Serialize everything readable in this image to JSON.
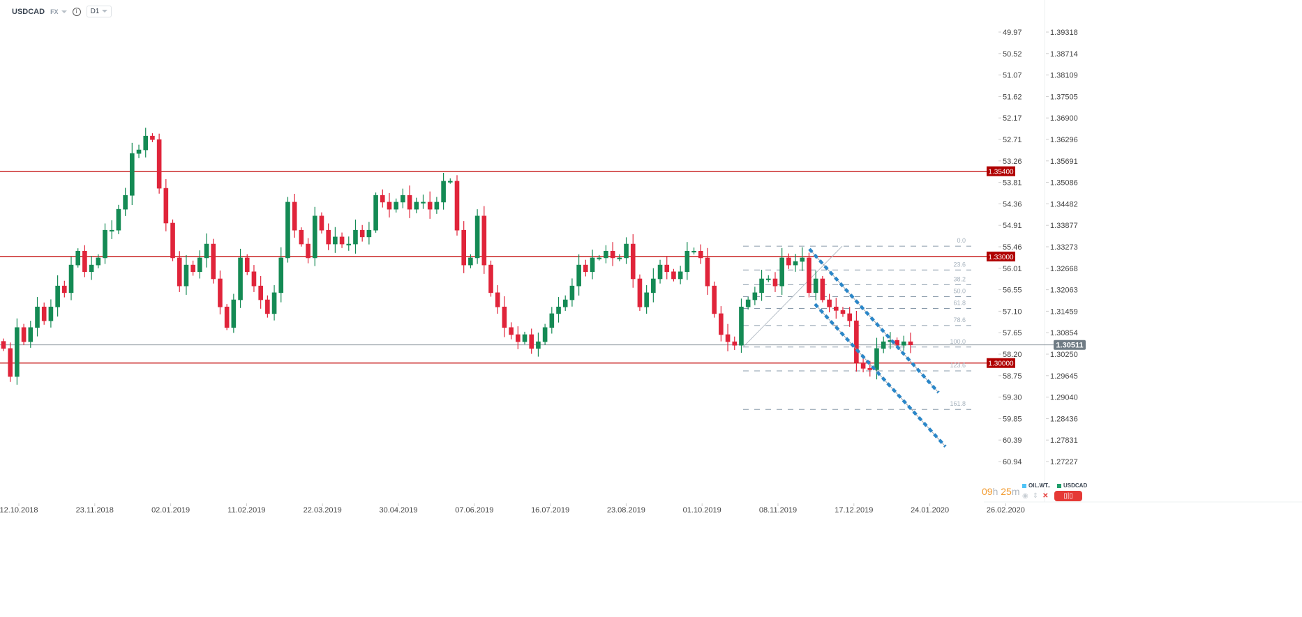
{
  "header": {
    "symbol": "USDCAD",
    "market": "FX",
    "timeframe": "D1"
  },
  "timer": {
    "hours": "09",
    "h_unit": "h",
    "minutes": "25",
    "m_unit": "m"
  },
  "legend": [
    {
      "label": "OIL.WT..",
      "color": "#4fc3f7"
    },
    {
      "label": "USDCAD",
      "color": "#1e9e6a"
    }
  ],
  "colors": {
    "up": "#148a54",
    "down": "#e0243a",
    "level": "#c00000",
    "fib": "#8a9bab",
    "channel": "#2a86c8",
    "current": "#7b868f"
  },
  "chart_data": {
    "type": "candlestick",
    "symbol": "USDCAD",
    "timeframe": "D1",
    "x_tick_labels": [
      "12.10.2018",
      "23.11.2018",
      "02.01.2019",
      "11.02.2019",
      "22.03.2019",
      "30.04.2019",
      "07.06.2019",
      "16.07.2019",
      "23.08.2019",
      "01.10.2019",
      "08.11.2019",
      "17.12.2019",
      "24.01.2020",
      "26.02.2020"
    ],
    "y_right_ticks": [
      "1.39318",
      "1.38714",
      "1.38109",
      "1.37505",
      "1.36900",
      "1.36296",
      "1.35691",
      "1.35086",
      "1.34482",
      "1.33877",
      "1.33273",
      "1.32668",
      "1.32063",
      "1.31459",
      "1.30854",
      "1.30250",
      "1.29645",
      "1.29040",
      "1.28436",
      "1.27831",
      "1.27227"
    ],
    "y_left_ticks": [
      "49.97",
      "50.52",
      "51.07",
      "51.62",
      "52.17",
      "52.71",
      "53.26",
      "53.81",
      "54.36",
      "54.91",
      "55.46",
      "56.01",
      "56.55",
      "57.10",
      "57.65",
      "58.20",
      "58.75",
      "59.30",
      "59.85",
      "60.39",
      "60.94"
    ],
    "ylim": [
      1.27227,
      1.39318
    ],
    "closes": [
      1.3041,
      1.2962,
      1.31,
      1.306,
      1.31,
      1.3158,
      1.3119,
      1.3158,
      1.3217,
      1.3198,
      1.3276,
      1.3315,
      1.3257,
      1.3276,
      1.3296,
      1.3374,
      1.3374,
      1.3433,
      1.3472,
      1.359,
      1.36,
      1.3639,
      1.3629,
      1.3492,
      1.3394,
      1.3296,
      1.3217,
      1.3276,
      1.3257,
      1.3296,
      1.3335,
      1.3237,
      1.3158,
      1.31,
      1.3178,
      1.3296,
      1.3257,
      1.3217,
      1.3178,
      1.3139,
      1.3198,
      1.3296,
      1.3453,
      1.3374,
      1.3335,
      1.3296,
      1.3414,
      1.3374,
      1.3335,
      1.3355,
      1.3335,
      1.3335,
      1.3374,
      1.3355,
      1.3374,
      1.3472,
      1.3453,
      1.3433,
      1.3453,
      1.3472,
      1.3433,
      1.3453,
      1.3453,
      1.3433,
      1.3453,
      1.3512,
      1.3512,
      1.3374,
      1.3276,
      1.3296,
      1.3414,
      1.3276,
      1.3198,
      1.3158,
      1.31,
      1.308,
      1.306,
      1.308,
      1.3041,
      1.306,
      1.31,
      1.3139,
      1.3158,
      1.3178,
      1.3217,
      1.3276,
      1.3257,
      1.3296,
      1.3296,
      1.3315,
      1.3296,
      1.3296,
      1.3335,
      1.3237,
      1.3158,
      1.3198,
      1.3237,
      1.3276,
      1.3257,
      1.3237,
      1.3257,
      1.3315,
      1.3315,
      1.3296,
      1.3217,
      1.3139,
      1.308,
      1.306,
      1.305,
      1.3158,
      1.3178,
      1.3198,
      1.3237,
      1.3237,
      1.3217,
      1.3296,
      1.3276,
      1.3286,
      1.3296,
      1.3198,
      1.3237,
      1.3178,
      1.3158,
      1.3148,
      1.3139,
      1.3119,
      1.3001,
      1.2985,
      1.2981,
      1.3041,
      1.306,
      1.3064,
      1.305,
      1.306,
      1.3051
    ],
    "horizontal_levels": [
      {
        "price": 1.354,
        "label": "1.35400"
      },
      {
        "price": 1.33,
        "label": "1.33000"
      },
      {
        "price": 1.3,
        "label": "1.30000"
      }
    ],
    "current_price": {
      "price": 1.30511,
      "label": "1.30511"
    },
    "fibonacci": {
      "high": 1.3329,
      "low": 1.3045,
      "levels": [
        {
          "ratio": 0.0,
          "label": "0.0"
        },
        {
          "ratio": 0.236,
          "label": "23.6"
        },
        {
          "ratio": 0.382,
          "label": "38.2"
        },
        {
          "ratio": 0.5,
          "label": "50.0"
        },
        {
          "ratio": 0.618,
          "label": "61.8"
        },
        {
          "ratio": 0.786,
          "label": "78.6"
        },
        {
          "ratio": 1.0,
          "label": "100.0"
        },
        {
          "ratio": 1.236,
          "label": "123.6"
        },
        {
          "ratio": 1.618,
          "label": "161.8"
        }
      ]
    },
    "channel_lines": [
      {
        "from": [
          "21.11.2019",
          1.3321
        ],
        "to": [
          "05.02.2020",
          1.2917
        ]
      },
      {
        "from": [
          "25.11.2019",
          1.3166
        ],
        "to": [
          "07.02.2020",
          1.2765
        ]
      }
    ]
  }
}
